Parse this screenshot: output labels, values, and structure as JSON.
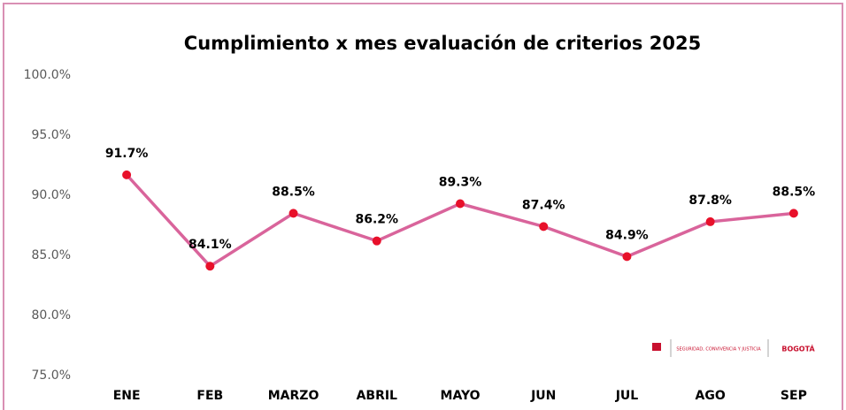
{
  "chart_data": {
    "type": "line",
    "title": "Cumplimiento x mes evaluación de criterios 2025",
    "categories": [
      "ENE",
      "FEB",
      "MARZO",
      "ABRIL",
      "MAYO",
      "JUN",
      "JUL",
      "AGO",
      "SEP"
    ],
    "values": [
      91.7,
      84.1,
      88.5,
      86.2,
      89.3,
      87.4,
      84.9,
      87.8,
      88.5
    ],
    "value_labels": [
      "91.7%",
      "84.1%",
      "88.5%",
      "86.2%",
      "89.3%",
      "87.4%",
      "84.9%",
      "87.8%",
      "88.5%"
    ],
    "color": "#d9649b",
    "marker_color": "#e8102a",
    "ylim": [
      75,
      100
    ],
    "yticks": [
      {
        "value": 75,
        "label": "75.0%"
      },
      {
        "value": 80,
        "label": "80.0%"
      },
      {
        "value": 85,
        "label": "85.0%"
      },
      {
        "value": 90,
        "label": "90.0%"
      },
      {
        "value": 95,
        "label": "95.0%"
      },
      {
        "value": 100,
        "label": "100.0%"
      }
    ],
    "grid": false,
    "logo": [
      "SEGURIDAD, CONVIVENCIA Y JUSTICIA",
      "BOGOTÁ"
    ]
  }
}
